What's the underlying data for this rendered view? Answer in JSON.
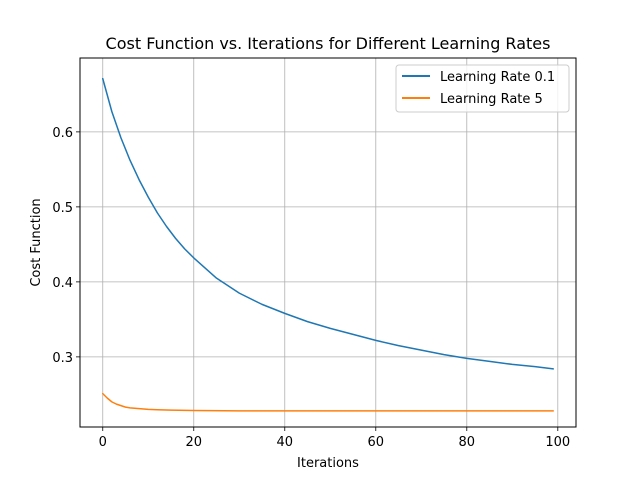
{
  "chart_data": {
    "type": "line",
    "title": "Cost Function vs. Iterations for Different Learning Rates",
    "xlabel": "Iterations",
    "ylabel": "Cost Function",
    "xlim": [
      -5,
      104
    ],
    "ylim": [
      0.2065,
      0.6985
    ],
    "xticks": [
      0,
      20,
      40,
      60,
      80,
      100
    ],
    "yticks": [
      0.3,
      0.4,
      0.5,
      0.6
    ],
    "grid": true,
    "legend_position": "top-right",
    "series": [
      {
        "name": "Learning Rate 0.1",
        "color": "#1f77b4",
        "x": [
          0,
          2,
          4,
          6,
          8,
          10,
          12,
          14,
          16,
          18,
          20,
          25,
          30,
          35,
          40,
          45,
          50,
          55,
          60,
          65,
          70,
          75,
          80,
          85,
          90,
          95,
          99
        ],
        "y": [
          0.671,
          0.627,
          0.592,
          0.562,
          0.536,
          0.513,
          0.492,
          0.474,
          0.458,
          0.444,
          0.432,
          0.405,
          0.385,
          0.37,
          0.358,
          0.347,
          0.338,
          0.33,
          0.322,
          0.315,
          0.309,
          0.303,
          0.298,
          0.294,
          0.29,
          0.287,
          0.284
        ]
      },
      {
        "name": "Learning Rate 5",
        "color": "#ff7f0e",
        "x": [
          0,
          1,
          2,
          3,
          4,
          5,
          6,
          8,
          10,
          12,
          15,
          20,
          30,
          40,
          50,
          60,
          70,
          80,
          90,
          99
        ],
        "y": [
          0.251,
          0.245,
          0.24,
          0.237,
          0.235,
          0.233,
          0.232,
          0.231,
          0.23,
          0.2295,
          0.229,
          0.2285,
          0.228,
          0.228,
          0.228,
          0.228,
          0.228,
          0.228,
          0.228,
          0.228
        ]
      }
    ]
  }
}
